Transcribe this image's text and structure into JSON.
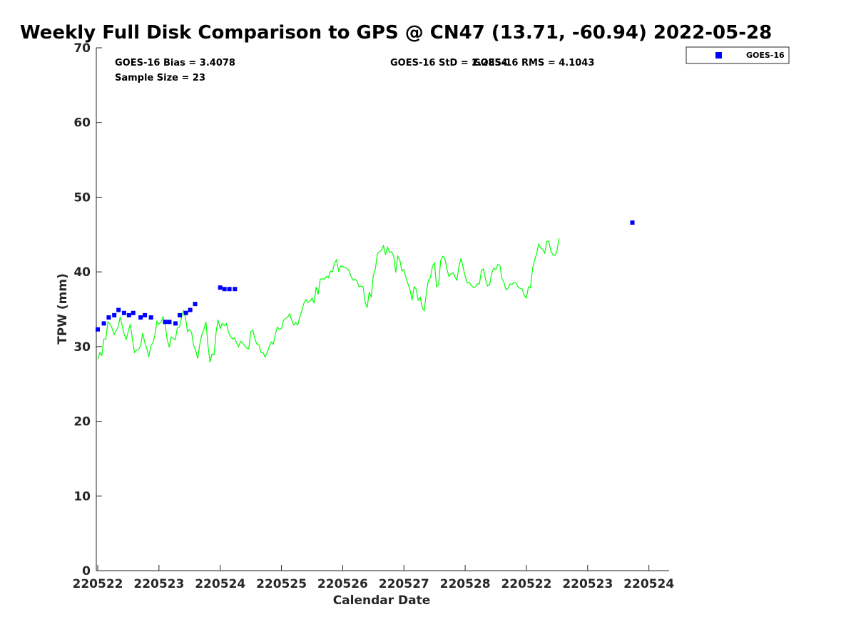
{
  "chart_data": {
    "type": "scatter",
    "title": "Weekly Full Disk Comparison to GPS @ CN47 (13.71, -60.94) 2022-05-28",
    "xlabel": "Calendar Date",
    "ylabel": "TPW (mm)",
    "ylim": [
      0,
      70
    ],
    "yticks": [
      0,
      10,
      20,
      30,
      40,
      50,
      60,
      70
    ],
    "xlim": [
      0,
      9.33
    ],
    "xtick_positions": [
      0,
      1,
      2,
      3,
      4,
      5,
      6,
      7,
      8,
      9
    ],
    "xtick_labels": [
      "220522",
      "220523",
      "220524",
      "220525",
      "220526",
      "220527",
      "220528",
      "220522",
      "220523",
      "220524"
    ],
    "grid": false,
    "legend": {
      "placement": "top-right",
      "entries": [
        "GOES-16"
      ]
    },
    "stats": {
      "bias": "GOES-16 Bias = 3.4078",
      "sample": "Sample Size = 23",
      "std": "GOES-16 StD = 2.2854",
      "rms": "GOES-16 RMS = 4.1043"
    },
    "series": [
      {
        "name": "GOES-16",
        "color": "#0000ff",
        "marker": "square",
        "points": [
          [
            0.0,
            32.3
          ],
          [
            0.1,
            33.1
          ],
          [
            0.18,
            33.9
          ],
          [
            0.27,
            34.2
          ],
          [
            0.34,
            34.9
          ],
          [
            0.43,
            34.5
          ],
          [
            0.51,
            34.2
          ],
          [
            0.58,
            34.5
          ],
          [
            0.7,
            33.9
          ],
          [
            0.77,
            34.2
          ],
          [
            0.87,
            33.9
          ],
          [
            1.1,
            33.3
          ],
          [
            1.17,
            33.3
          ],
          [
            1.27,
            33.1
          ],
          [
            1.34,
            34.2
          ],
          [
            1.44,
            34.5
          ],
          [
            1.51,
            34.9
          ],
          [
            1.59,
            35.7
          ],
          [
            2.0,
            37.9
          ],
          [
            2.07,
            37.7
          ],
          [
            2.15,
            37.7
          ],
          [
            2.24,
            37.7
          ],
          [
            8.73,
            46.6
          ]
        ]
      },
      {
        "name": "GPS",
        "color": "#00ff00",
        "line": true,
        "x_start": 0.0,
        "x_step": 0.03333,
        "values": [
          28.3,
          29.2,
          28.8,
          31.0,
          31.0,
          33.3,
          33.0,
          32.5,
          31.6,
          32.1,
          32.6,
          34.0,
          32.8,
          31.6,
          31.0,
          32.1,
          33.0,
          31.0,
          29.2,
          29.5,
          29.6,
          30.1,
          31.8,
          30.6,
          29.8,
          28.6,
          30.1,
          30.5,
          31.5,
          33.4,
          33.0,
          33.3,
          34.0,
          33.0,
          31.0,
          29.9,
          31.3,
          31.1,
          30.9,
          32.5,
          32.6,
          33.8,
          34.8,
          33.9,
          32.0,
          32.3,
          31.9,
          30.1,
          29.5,
          28.4,
          30.3,
          31.6,
          32.3,
          33.3,
          30.2,
          27.9,
          29.0,
          28.9,
          32.0,
          33.6,
          32.4,
          33.1,
          32.8,
          33.1,
          32.0,
          31.4,
          31.0,
          31.2,
          30.5,
          30.0,
          30.7,
          30.5,
          30.1,
          29.8,
          29.7,
          32.0,
          32.2,
          31.0,
          30.3,
          30.2,
          29.2,
          29.2,
          28.6,
          29.2,
          30.0,
          30.6,
          30.3,
          31.6,
          32.6,
          32.3,
          32.4,
          33.5,
          33.8,
          33.9,
          34.4,
          33.6,
          32.9,
          33.2,
          32.9,
          34.0,
          34.8,
          35.8,
          36.3,
          35.9,
          36.1,
          36.5,
          35.8,
          38.0,
          37.0,
          39.0,
          39.1,
          39.0,
          39.4,
          39.2,
          40.1,
          40.0,
          41.2,
          41.6,
          40.1,
          40.8,
          40.7,
          40.6,
          40.5,
          40.2,
          39.5,
          38.9,
          39.0,
          38.8,
          38.0,
          38.1,
          38.0,
          36.0,
          35.2,
          37.3,
          36.6,
          39.5,
          40.4,
          42.4,
          42.7,
          42.9,
          43.5,
          42.3,
          43.3,
          42.6,
          42.7,
          42.1,
          39.9,
          42.1,
          41.6,
          40.1,
          40.3,
          39.2,
          38.4,
          37.6,
          36.2,
          38.0,
          37.7,
          36.2,
          36.6,
          35.2,
          34.8,
          37.2,
          38.9,
          39.2,
          40.8,
          41.2,
          38.0,
          38.3,
          41.5,
          42.1,
          41.9,
          40.5,
          39.4,
          39.7,
          39.9,
          39.3,
          38.9,
          40.8,
          41.8,
          40.6,
          39.4,
          38.5,
          38.6,
          38.2,
          37.9,
          38.0,
          38.4,
          38.4,
          40.2,
          40.4,
          39.0,
          38.1,
          38.3,
          39.8,
          40.5,
          40.3,
          41.0,
          40.9,
          39.1,
          38.6,
          37.6,
          37.8,
          38.4,
          38.3,
          38.6,
          38.5,
          37.9,
          37.8,
          37.7,
          36.8,
          36.5,
          38.0,
          37.9,
          40.4,
          41.5,
          42.4,
          43.7,
          43.2,
          43.0,
          42.5,
          44.1,
          44.1,
          42.8,
          42.3,
          42.2,
          42.8,
          44.5
        ]
      }
    ]
  }
}
